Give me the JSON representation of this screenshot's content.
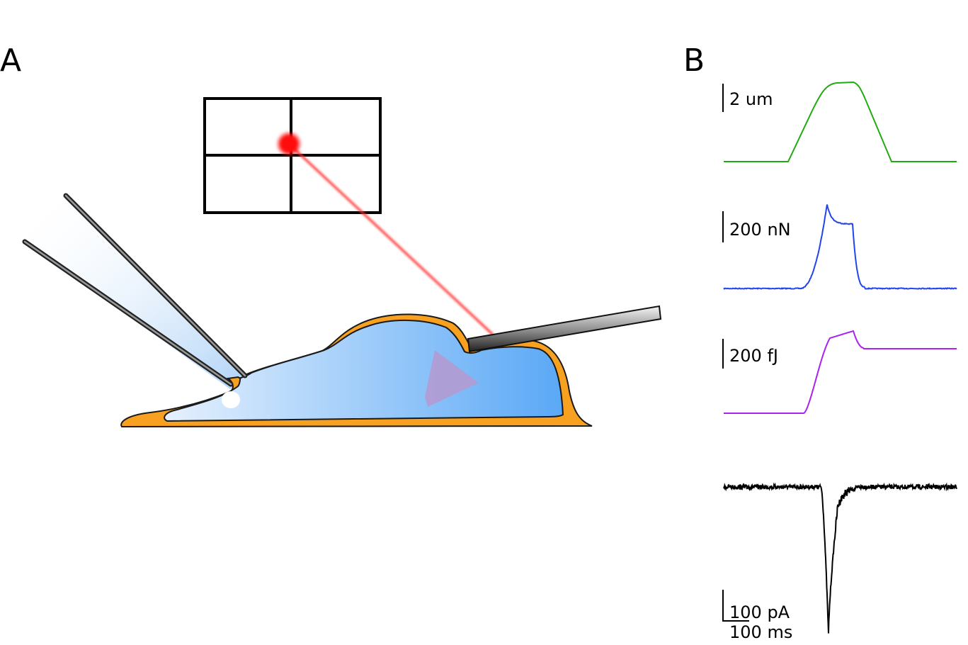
{
  "panels": {
    "a_label": "A",
    "b_label": "B"
  },
  "traces": [
    {
      "id": "displacement",
      "scale_label": "2 um",
      "color": "#22aa11"
    },
    {
      "id": "force",
      "scale_label": "200 nN",
      "color": "#2244ee"
    },
    {
      "id": "energy",
      "scale_label": "200 fJ",
      "color": "#aa22ee"
    },
    {
      "id": "current",
      "scale_label": "100 pA",
      "time_label": "100 ms",
      "color": "#000000"
    }
  ],
  "colors": {
    "cell_membrane": "#f8a020",
    "cytoplasm_light": "#dcecfc",
    "cytoplasm_dark": "#5aa8f6",
    "laser": "#ff2020",
    "nucleus": "#b09cd0"
  }
}
